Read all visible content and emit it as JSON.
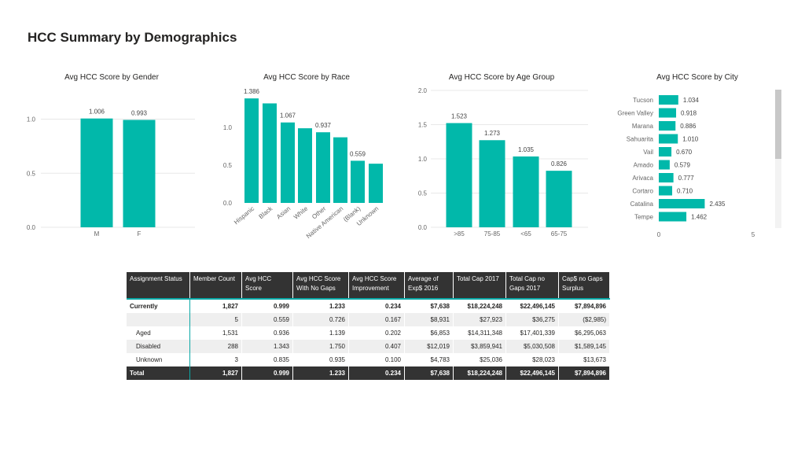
{
  "page_title": "HCC Summary by Demographics",
  "colors": {
    "bar": "#01b8aa",
    "header_bg": "#333333",
    "accent_line": "#0aa8a6"
  },
  "chart_data": [
    {
      "id": "gender",
      "type": "bar",
      "title": "Avg HCC Score by Gender",
      "categories": [
        "M",
        "F"
      ],
      "values": [
        1.006,
        0.993
      ],
      "labels": [
        "1.006",
        "0.993"
      ],
      "yticks": [
        0.0,
        0.5,
        1.0
      ],
      "ytick_labels": [
        "0.0",
        "0.5",
        "1.0"
      ],
      "ylim": [
        0,
        1.2
      ],
      "grid": true
    },
    {
      "id": "race",
      "type": "bar",
      "title": "Avg HCC Score by Race",
      "categories": [
        "Hispanic",
        "Black",
        "Asian",
        "White",
        "Other",
        "Native American",
        "(Blank)",
        "Unknown"
      ],
      "values": [
        1.386,
        1.32,
        1.067,
        0.99,
        0.937,
        0.87,
        0.559,
        0.52
      ],
      "labels": [
        "1.386",
        "",
        "1.067",
        "",
        "0.937",
        "",
        "0.559",
        ""
      ],
      "yticks": [
        0.0,
        0.5,
        1.0
      ],
      "ytick_labels": [
        "0.0",
        "0.5",
        "1.0"
      ],
      "ylim": [
        0,
        1.45
      ],
      "grid": false
    },
    {
      "id": "age",
      "type": "bar",
      "title": "Avg HCC Score by Age Group",
      "categories": [
        ">85",
        "75-85",
        "<65",
        "65-75"
      ],
      "values": [
        1.523,
        1.273,
        1.035,
        0.826
      ],
      "labels": [
        "1.523",
        "1.273",
        "1.035",
        "0.826"
      ],
      "yticks": [
        0.0,
        0.5,
        1.0,
        1.5,
        2.0
      ],
      "ytick_labels": [
        "0.0",
        "0.5",
        "1.0",
        "1.5",
        "2.0"
      ],
      "ylim": [
        0,
        2.0
      ],
      "grid": true
    },
    {
      "id": "city",
      "type": "bar",
      "orientation": "horizontal",
      "title": "Avg HCC Score by City",
      "categories": [
        "Tucson",
        "Green Valley",
        "Marana",
        "Sahuarita",
        "Vail",
        "Amado",
        "Arivaca",
        "Cortaro",
        "Catalina",
        "Tempe"
      ],
      "values": [
        1.034,
        0.918,
        0.886,
        1.01,
        0.67,
        0.579,
        0.777,
        0.71,
        2.435,
        1.462
      ],
      "labels": [
        "1.034",
        "0.918",
        "0.886",
        "1.010",
        "0.670",
        "0.579",
        "0.777",
        "0.710",
        "2.435",
        "1.462"
      ],
      "xticks": [
        0,
        5
      ],
      "xtick_labels": [
        "0",
        "5"
      ],
      "xlim": [
        0,
        5
      ]
    }
  ],
  "table": {
    "headers": [
      "Assignment Status",
      "Member Count",
      "Avg HCC Score",
      "Avg HCC Score With No Gaps",
      "Avg HCC Score Improvement",
      "Average of Exp$ 2016",
      "Total Cap 2017",
      "Total Cap no Gaps 2017",
      "Cap$ no Gaps Surplus"
    ],
    "rows": [
      [
        "Currently",
        "1,827",
        "0.999",
        "1.233",
        "0.234",
        "$7,638",
        "$18,224,248",
        "$22,496,145",
        "$7,894,896"
      ],
      [
        "",
        "5",
        "0.559",
        "0.726",
        "0.167",
        "$8,931",
        "$27,923",
        "$36,275",
        "($2,985)"
      ],
      [
        "Aged",
        "1,531",
        "0.936",
        "1.139",
        "0.202",
        "$6,853",
        "$14,311,348",
        "$17,401,339",
        "$6,295,063"
      ],
      [
        "Disabled",
        "288",
        "1.343",
        "1.750",
        "0.407",
        "$12,019",
        "$3,859,941",
        "$5,030,508",
        "$1,589,145"
      ],
      [
        "Unknown",
        "3",
        "0.835",
        "0.935",
        "0.100",
        "$4,783",
        "$25,036",
        "$28,023",
        "$13,673"
      ]
    ],
    "total": [
      "Total",
      "1,827",
      "0.999",
      "1.233",
      "0.234",
      "$7,638",
      "$18,224,248",
      "$22,496,145",
      "$7,894,896"
    ]
  }
}
